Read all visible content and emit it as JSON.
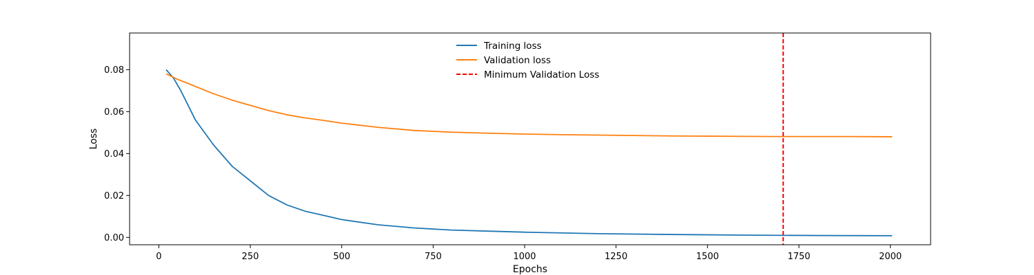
{
  "chart_data": {
    "type": "line",
    "xlabel": "Epochs",
    "ylabel": "Loss",
    "xlim": [
      -80,
      2110
    ],
    "ylim": [
      -0.0035,
      0.0975
    ],
    "xticks": [
      0,
      250,
      500,
      750,
      1000,
      1250,
      1500,
      1750,
      2000
    ],
    "yticks": [
      0.0,
      0.02,
      0.04,
      0.06,
      0.08
    ],
    "ytick_labels": [
      "0.00",
      "0.02",
      "0.04",
      "0.06",
      "0.08"
    ],
    "legend_position": "upper center",
    "series": [
      {
        "name": "Training loss",
        "color": "#1f77b4",
        "style": "solid",
        "x": [
          20,
          40,
          60,
          80,
          100,
          125,
          150,
          175,
          200,
          250,
          300,
          350,
          400,
          450,
          500,
          600,
          700,
          800,
          900,
          1000,
          1200,
          1400,
          1600,
          1800,
          2005
        ],
        "y": [
          0.08,
          0.076,
          0.07,
          0.063,
          0.056,
          0.05,
          0.044,
          0.039,
          0.034,
          0.027,
          0.02,
          0.0155,
          0.0125,
          0.0105,
          0.0085,
          0.006,
          0.0045,
          0.0035,
          0.003,
          0.0025,
          0.0018,
          0.0014,
          0.0011,
          0.0009,
          0.0008
        ]
      },
      {
        "name": "Validation loss",
        "color": "#ff7f0e",
        "style": "solid",
        "x": [
          20,
          50,
          100,
          150,
          200,
          250,
          300,
          350,
          400,
          450,
          500,
          600,
          700,
          800,
          900,
          1000,
          1100,
          1200,
          1300,
          1400,
          1500,
          1600,
          1700,
          1800,
          1900,
          2005
        ],
        "y": [
          0.078,
          0.0755,
          0.072,
          0.0685,
          0.0655,
          0.063,
          0.0605,
          0.0585,
          0.057,
          0.0558,
          0.0545,
          0.0525,
          0.051,
          0.0502,
          0.0497,
          0.0493,
          0.049,
          0.0488,
          0.0486,
          0.0484,
          0.0483,
          0.0482,
          0.0481,
          0.0481,
          0.0481,
          0.048
        ]
      },
      {
        "name": "Minimum Validation Loss",
        "color": "#ff0000",
        "style": "dashed",
        "vline_x": 1707
      }
    ]
  }
}
